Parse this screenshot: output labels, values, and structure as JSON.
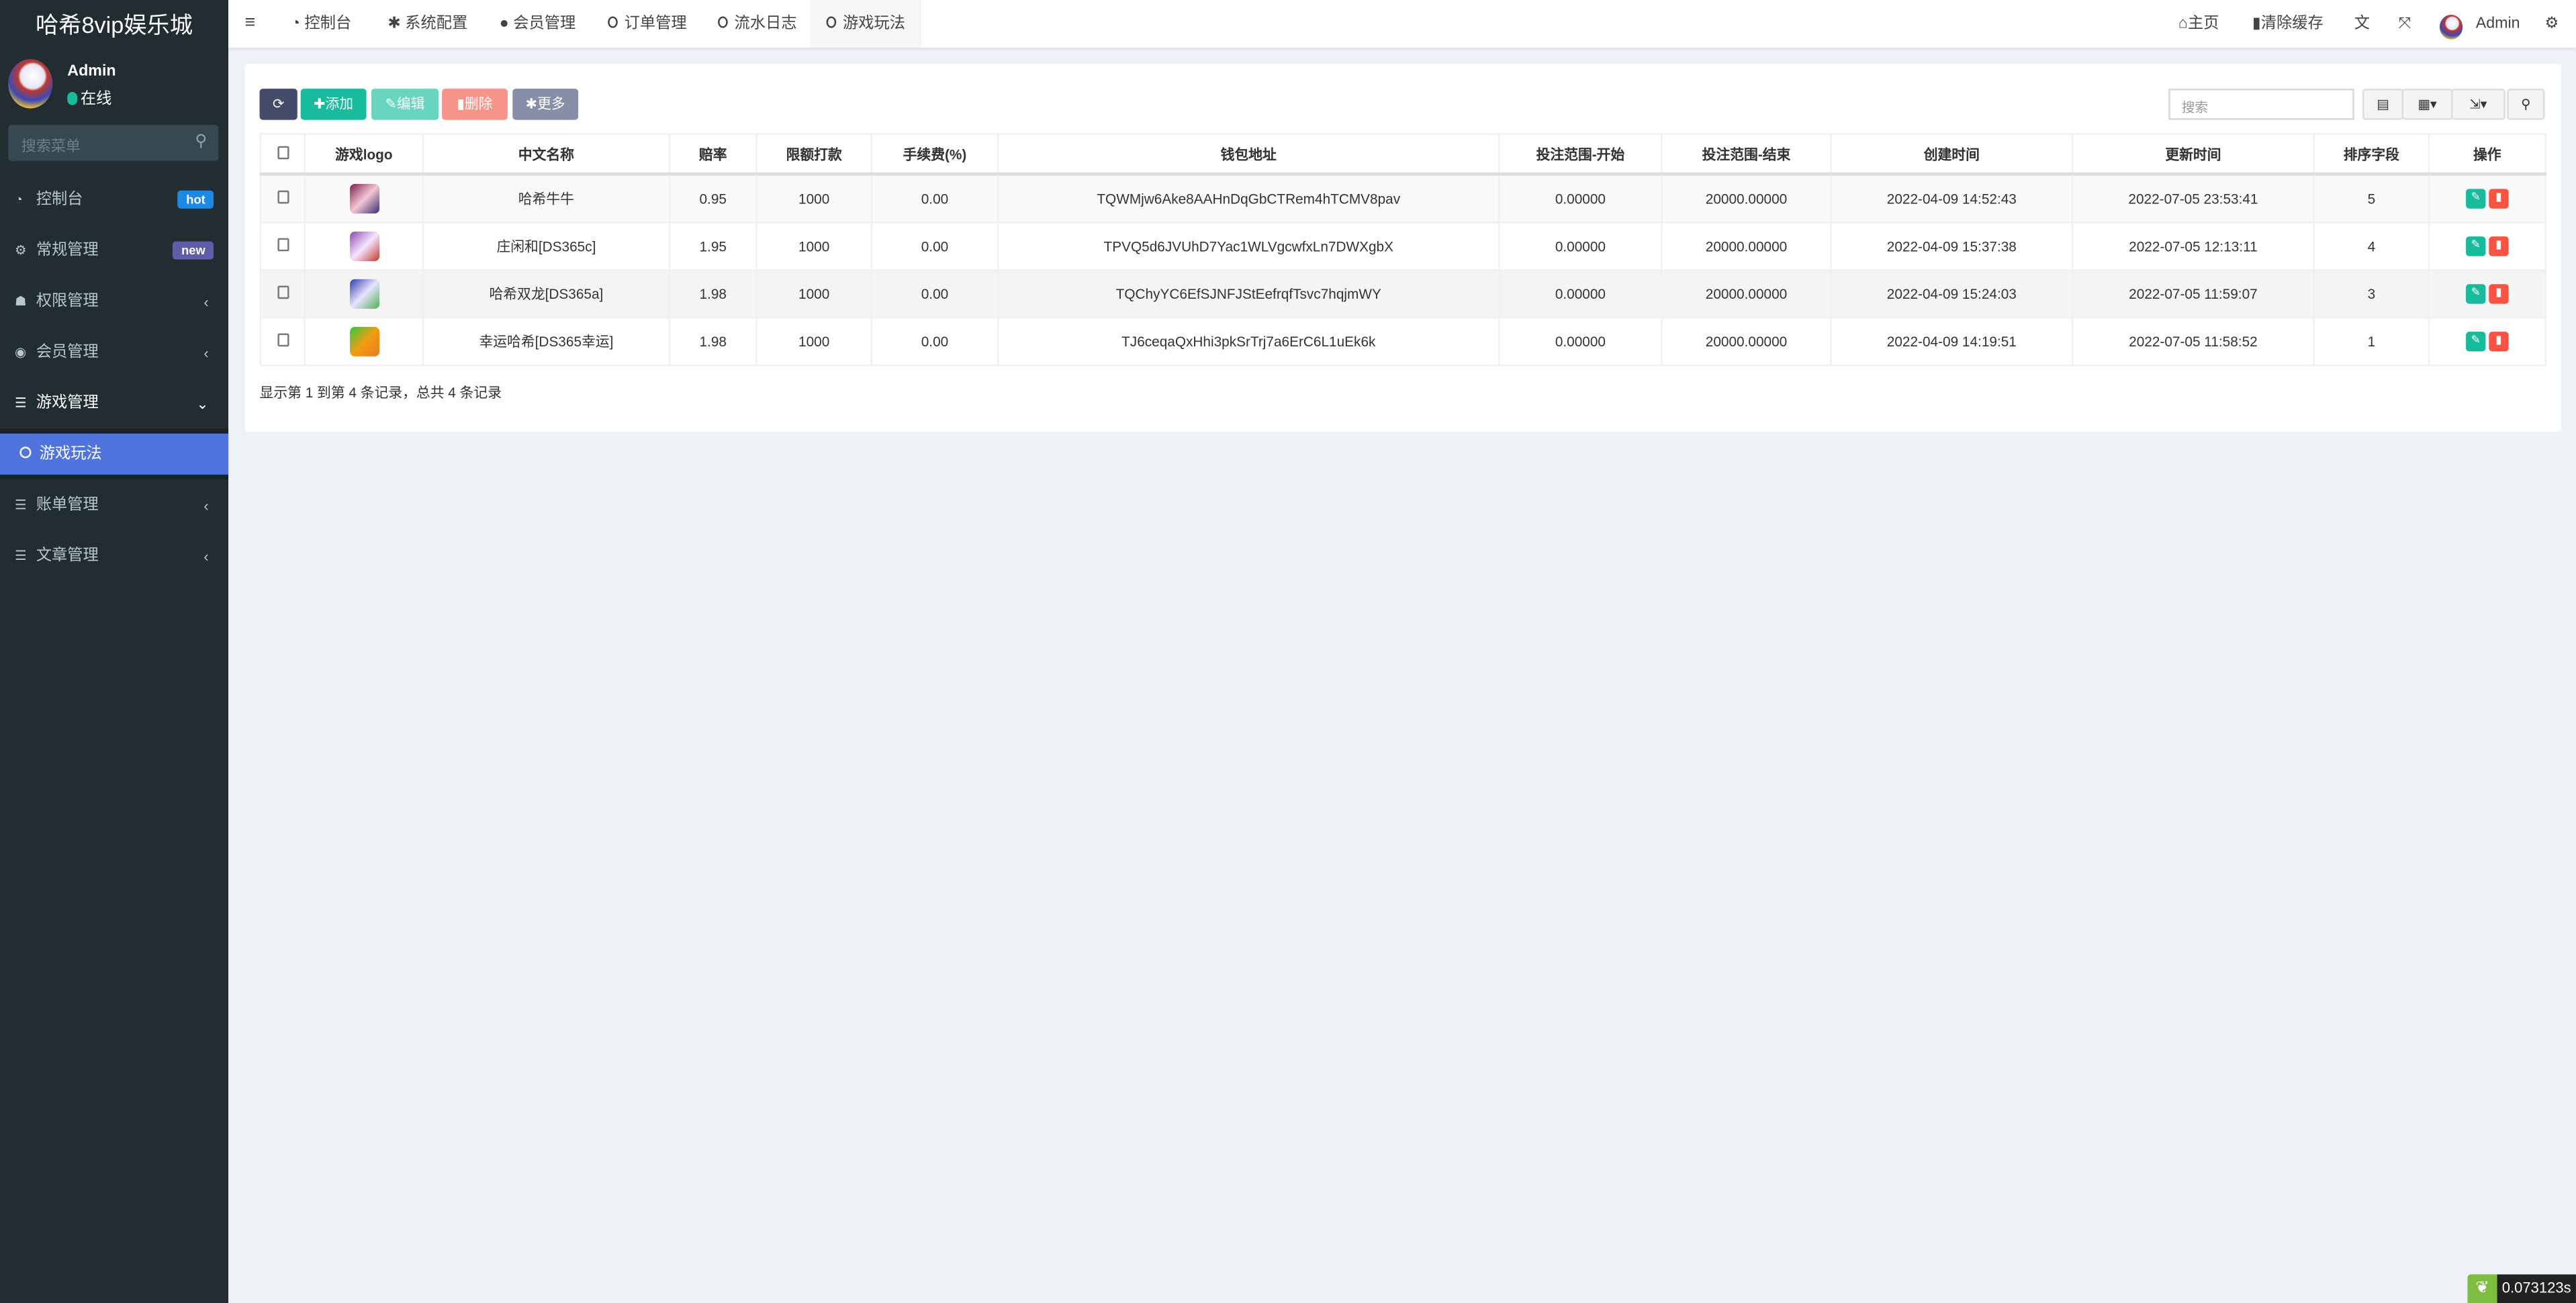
{
  "brand": "哈希8vip娱乐城",
  "user": {
    "name": "Admin",
    "status": "在线"
  },
  "menu_search": {
    "placeholder": "搜索菜单"
  },
  "sidebar": {
    "items": [
      {
        "label": "控制台",
        "icon": "dashboard-icon",
        "badge": "hot",
        "badge_color": "#1e88e5"
      },
      {
        "label": "常规管理",
        "icon": "cogs-icon",
        "badge": "new",
        "badge_color": "#605ca8"
      },
      {
        "label": "权限管理",
        "icon": "users-icon"
      },
      {
        "label": "会员管理",
        "icon": "user-circle-icon"
      },
      {
        "label": "游戏管理",
        "icon": "list-icon",
        "open": true
      },
      {
        "label": "账单管理",
        "icon": "list-icon"
      },
      {
        "label": "文章管理",
        "icon": "list-icon"
      }
    ],
    "active_sub": "游戏玩法",
    "active_color": "#4f74de"
  },
  "topnav": {
    "tabs": [
      "控制台",
      "系统配置",
      "会员管理",
      "订单管理",
      "流水日志",
      "游戏玩法"
    ],
    "active": "游戏玩法",
    "right": {
      "home": "主页",
      "clear_cache": "清除缓存",
      "admin": "Admin"
    }
  },
  "toolbar": {
    "add": "添加",
    "edit": "编辑",
    "delete": "删除",
    "more": "更多",
    "search_placeholder": "搜索"
  },
  "table": {
    "headers": [
      "游戏logo",
      "中文名称",
      "赔率",
      "限额打款",
      "手续费(%)",
      "钱包地址",
      "投注范围-开始",
      "投注范围-结束",
      "创建时间",
      "更新时间",
      "排序字段",
      "操作"
    ],
    "rows": [
      {
        "name": "哈希牛牛",
        "odds": "0.95",
        "limit": "1000",
        "fee": "0.00",
        "wallet": "TQWMjw6Ake8AAHnDqGbCTRem4hTCMV8pav",
        "start": "0.00000",
        "end": "20000.00000",
        "created": "2022-04-09 14:52:43",
        "updated": "2022-07-05 23:53:41",
        "sort": "5"
      },
      {
        "name": "庄闲和[DS365c]",
        "odds": "1.95",
        "limit": "1000",
        "fee": "0.00",
        "wallet": "TPVQ5d6JVUhD7Yac1WLVgcwfxLn7DWXgbX",
        "start": "0.00000",
        "end": "20000.00000",
        "created": "2022-04-09 15:37:38",
        "updated": "2022-07-05 12:13:11",
        "sort": "4"
      },
      {
        "name": "哈希双龙[DS365a]",
        "odds": "1.98",
        "limit": "1000",
        "fee": "0.00",
        "wallet": "TQChyYC6EfSJNFJStEefrqfTsvc7hqjmWY",
        "start": "0.00000",
        "end": "20000.00000",
        "created": "2022-04-09 15:24:03",
        "updated": "2022-07-05 11:59:07",
        "sort": "3"
      },
      {
        "name": "幸运哈希[DS365幸运]",
        "odds": "1.98",
        "limit": "1000",
        "fee": "0.00",
        "wallet": "TJ6ceqaQxHhi3pkSrTrj7a6ErC6L1uEk6k",
        "start": "0.00000",
        "end": "20000.00000",
        "created": "2022-04-09 14:19:51",
        "updated": "2022-07-05 11:58:52",
        "sort": "1"
      }
    ]
  },
  "footer": "显示第 1 到第 4 条记录，总共 4 条记录",
  "timer": "0.073123s"
}
